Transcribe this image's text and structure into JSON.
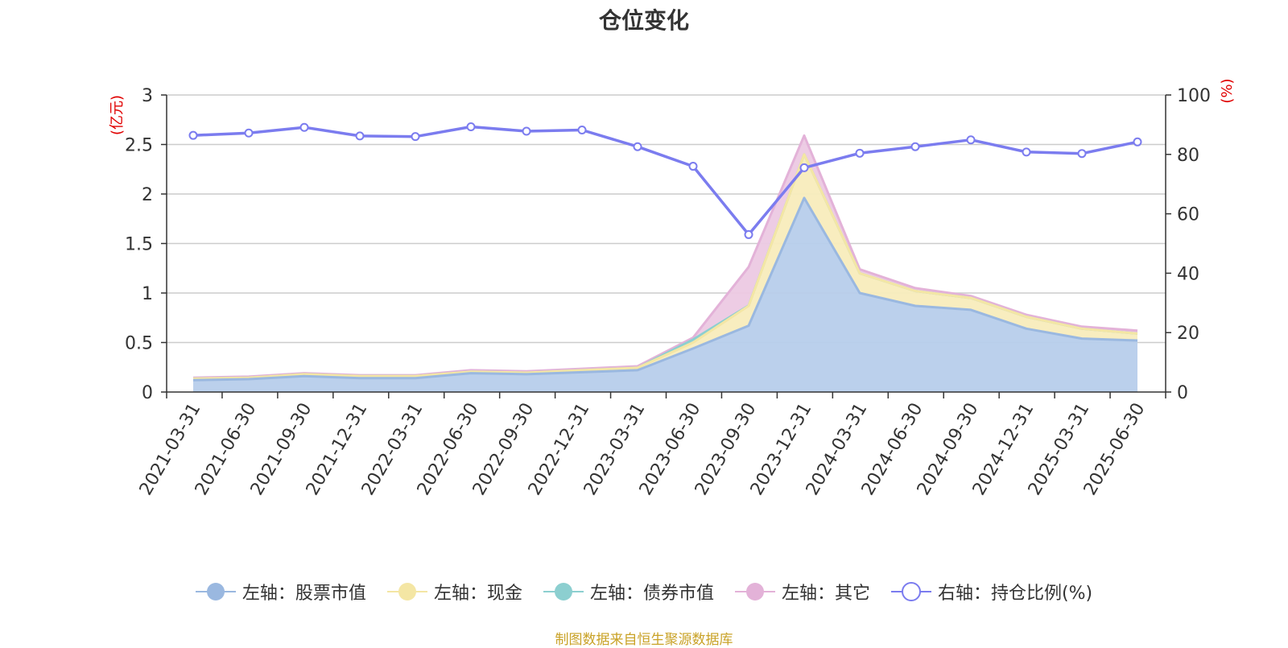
{
  "title": "仓位变化",
  "source_note": "制图数据来自恒生聚源数据库",
  "colors": {
    "stock": "#9ab8e0",
    "stock_fill": "#b7cdeb",
    "cash": "#f4e6a4",
    "cash_fill": "#f8ecbc",
    "bond": "#8ccfd0",
    "other": "#e3b2d8",
    "other_fill": "#ecc9e3",
    "ratio": "#7b7cef",
    "axis_unit": "#e00000",
    "grid": "#cccccc",
    "axis": "#333333"
  },
  "chart_data": {
    "type": "area",
    "title": "仓位变化",
    "x": [
      "2021-03-31",
      "2021-06-30",
      "2021-09-30",
      "2021-12-31",
      "2022-03-31",
      "2022-06-30",
      "2022-09-30",
      "2022-12-31",
      "2023-03-31",
      "2023-06-30",
      "2023-09-30",
      "2023-12-31",
      "2024-03-31",
      "2024-06-30",
      "2024-09-30",
      "2024-12-31",
      "2025-03-31",
      "2025-06-30"
    ],
    "y_left": {
      "unit_label": "(亿元)",
      "ylim": [
        0,
        3
      ],
      "ticks": [
        "0",
        "0.5",
        "1",
        "1.5",
        "2",
        "2.5",
        "3"
      ]
    },
    "y_right": {
      "unit_label": "(%)",
      "ylim": [
        0,
        100
      ],
      "ticks": [
        "0",
        "20",
        "40",
        "60",
        "80",
        "100"
      ]
    },
    "grid": true,
    "legend_position": "bottom",
    "series": [
      {
        "name": "左轴：股票市值",
        "axis": "left",
        "stacked": true,
        "values": [
          0.12,
          0.13,
          0.16,
          0.14,
          0.14,
          0.19,
          0.18,
          0.2,
          0.22,
          0.44,
          0.67,
          1.96,
          1.0,
          0.87,
          0.83,
          0.64,
          0.54,
          0.52
        ]
      },
      {
        "name": "左轴：现金",
        "axis": "left",
        "stacked": true,
        "values": [
          0.015,
          0.015,
          0.02,
          0.02,
          0.02,
          0.015,
          0.015,
          0.02,
          0.025,
          0.06,
          0.2,
          0.44,
          0.2,
          0.15,
          0.12,
          0.12,
          0.1,
          0.07
        ]
      },
      {
        "name": "左轴：债券市值",
        "axis": "left",
        "stacked": true,
        "values": [
          0,
          0,
          0,
          0,
          0,
          0,
          0,
          0,
          0,
          0.03,
          0.003,
          0,
          0,
          0,
          0,
          0,
          0,
          0
        ]
      },
      {
        "name": "左轴：其它",
        "axis": "left",
        "stacked": true,
        "values": [
          0.01,
          0.01,
          0.01,
          0.01,
          0.01,
          0.015,
          0.015,
          0.015,
          0.015,
          0.02,
          0.39,
          0.19,
          0.04,
          0.03,
          0.02,
          0.02,
          0.02,
          0.03
        ]
      },
      {
        "name": "右轴：持仓比例(%)",
        "axis": "right",
        "stacked": false,
        "values": [
          86.4,
          87.2,
          89.1,
          86.2,
          86.0,
          89.3,
          87.8,
          88.2,
          82.6,
          76.0,
          53.0,
          75.5,
          80.4,
          82.6,
          84.9,
          80.8,
          80.3,
          84.2
        ]
      }
    ]
  }
}
